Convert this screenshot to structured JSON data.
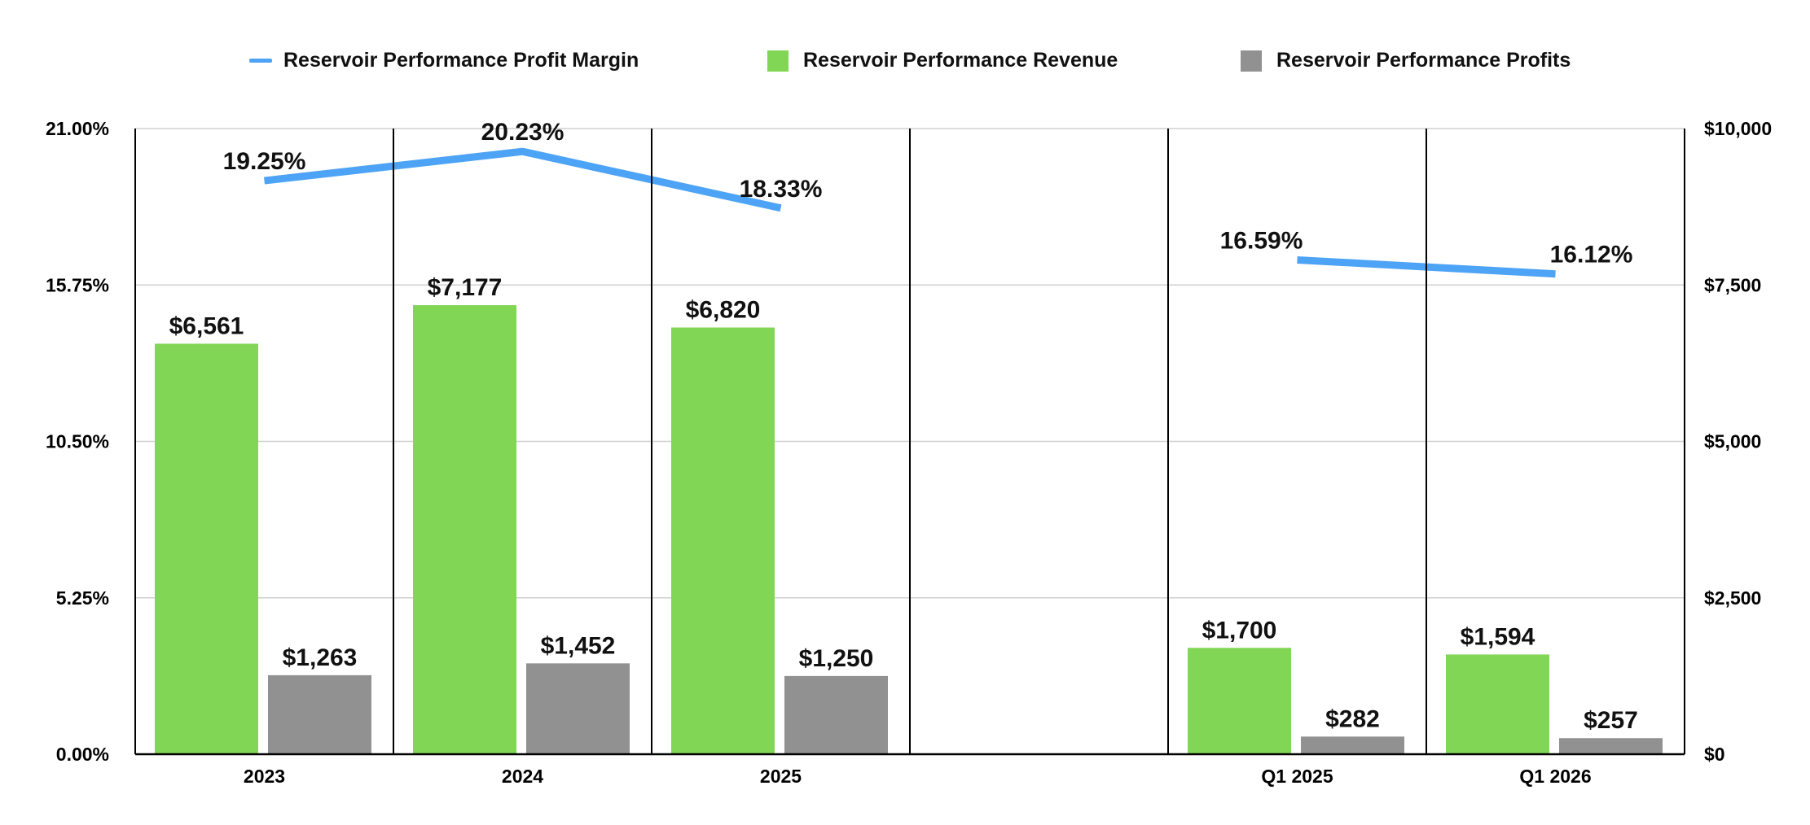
{
  "colors": {
    "margin_line": "#4da3f5",
    "revenue_bar": "#81d655",
    "profit_bar": "#919191",
    "grid": "#cfcfcf",
    "axis": "#000000"
  },
  "legend": {
    "margin_label": "Reservoir Performance Profit Margin",
    "revenue_label": "Reservoir Performance Revenue",
    "profit_label": "Reservoir Performance Profits"
  },
  "chart_data": {
    "type": "bar",
    "categories": [
      "2023",
      "2024",
      "2025",
      "",
      "Q1 2025",
      "Q1 2026"
    ],
    "series": [
      {
        "name": "Reservoir Performance Revenue",
        "axis": "right",
        "values": [
          6561,
          7177,
          6820,
          null,
          1700,
          1594
        ],
        "labels": [
          "$6,561",
          "$7,177",
          "$6,820",
          "",
          "$1,700",
          "$1,594"
        ]
      },
      {
        "name": "Reservoir Performance Profits",
        "axis": "right",
        "values": [
          1263,
          1452,
          1250,
          null,
          282,
          257
        ],
        "labels": [
          "$1,263",
          "$1,452",
          "$1,250",
          "",
          "$282",
          "$257"
        ]
      },
      {
        "name": "Reservoir Performance Profit Margin",
        "type": "line",
        "axis": "left",
        "values": [
          19.25,
          20.23,
          18.33,
          null,
          16.59,
          16.12
        ],
        "labels": [
          "19.25%",
          "20.23%",
          "18.33%",
          "",
          "16.59%",
          "16.12%"
        ]
      }
    ],
    "y_left": {
      "min": 0,
      "max": 21,
      "ticks": [
        0,
        5.25,
        10.5,
        15.75,
        21
      ],
      "tick_labels": [
        "0.00%",
        "5.25%",
        "10.50%",
        "15.75%",
        "21.00%"
      ]
    },
    "y_right": {
      "min": 0,
      "max": 10000,
      "ticks": [
        0,
        2500,
        5000,
        7500,
        10000
      ],
      "tick_labels": [
        "$0",
        "$2,500",
        "$5,000",
        "$7,500",
        "$10,000"
      ]
    },
    "grid": true,
    "legend_position": "top"
  }
}
